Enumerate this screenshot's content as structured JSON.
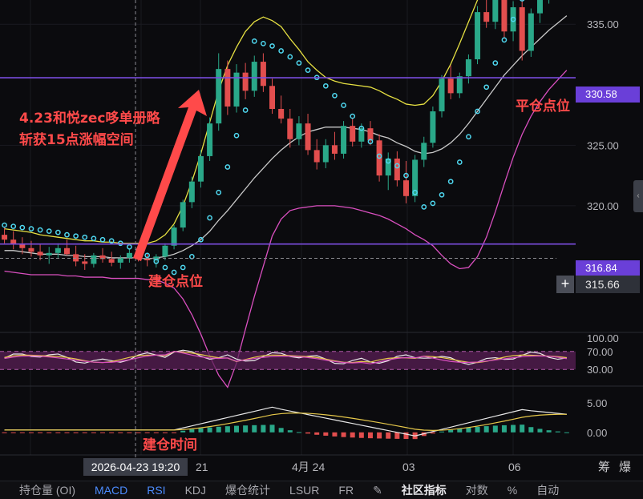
{
  "chart_data": {
    "type": "candlestick",
    "price_axis": {
      "ticks": [
        "335.00",
        "325.00",
        "320.00"
      ],
      "range": [
        310,
        337
      ]
    },
    "date_axis": {
      "labels": [
        "21",
        "4月 24",
        "03",
        "06"
      ]
    },
    "candles": [
      [
        317.6,
        318.2,
        316.9,
        317.2
      ],
      [
        317.2,
        317.9,
        316.4,
        316.8
      ],
      [
        316.8,
        317.4,
        316.0,
        316.5
      ],
      [
        316.5,
        317.1,
        315.8,
        316.2
      ],
      [
        316.2,
        316.8,
        315.5,
        315.9
      ],
      [
        315.9,
        316.6,
        315.2,
        316.1
      ],
      [
        316.1,
        316.9,
        315.7,
        316.5
      ],
      [
        316.5,
        317.2,
        315.9,
        316.0
      ],
      [
        316.0,
        316.7,
        315.0,
        315.4
      ],
      [
        315.4,
        316.0,
        314.7,
        315.2
      ],
      [
        315.2,
        316.1,
        314.9,
        315.9
      ],
      [
        315.9,
        316.5,
        315.3,
        315.6
      ],
      [
        315.6,
        316.2,
        315.0,
        315.3
      ],
      [
        315.3,
        315.9,
        314.8,
        315.7
      ],
      [
        315.7,
        316.4,
        315.3,
        316.1
      ],
      [
        316.1,
        316.6,
        315.4,
        315.6
      ],
      [
        315.6,
        316.1,
        315.0,
        315.5
      ],
      [
        315.5,
        316.0,
        314.9,
        315.8
      ],
      [
        315.8,
        316.9,
        315.5,
        316.7
      ],
      [
        316.7,
        318.4,
        316.4,
        318.2
      ],
      [
        318.2,
        320.5,
        317.9,
        320.3
      ],
      [
        320.3,
        322.4,
        319.8,
        322.0
      ],
      [
        322.0,
        324.6,
        321.5,
        324.1
      ],
      [
        324.1,
        327.3,
        323.7,
        326.8
      ],
      [
        326.8,
        332.6,
        326.2,
        331.3
      ],
      [
        331.3,
        332.0,
        327.5,
        328.2
      ],
      [
        328.2,
        331.7,
        327.7,
        331.0
      ],
      [
        331.0,
        331.8,
        328.8,
        329.5
      ],
      [
        329.5,
        332.4,
        329.0,
        331.9
      ],
      [
        331.9,
        332.6,
        329.4,
        329.9
      ],
      [
        329.9,
        330.5,
        327.6,
        328.0
      ],
      [
        328.0,
        329.1,
        326.8,
        327.2
      ],
      [
        327.2,
        328.0,
        324.8,
        325.5
      ],
      [
        325.5,
        327.4,
        325.0,
        326.8
      ],
      [
        326.8,
        327.6,
        324.2,
        324.6
      ],
      [
        324.6,
        325.5,
        323.0,
        323.6
      ],
      [
        323.6,
        325.5,
        323.1,
        325.0
      ],
      [
        325.0,
        326.1,
        323.8,
        324.3
      ],
      [
        324.3,
        327.0,
        323.9,
        326.6
      ],
      [
        326.6,
        327.2,
        324.9,
        325.3
      ],
      [
        325.3,
        326.8,
        324.8,
        326.4
      ],
      [
        326.4,
        327.0,
        325.0,
        325.4
      ],
      [
        325.4,
        325.9,
        322.0,
        322.5
      ],
      [
        322.5,
        324.4,
        321.3,
        323.9
      ],
      [
        323.9,
        324.5,
        321.6,
        322.1
      ],
      [
        322.1,
        323.7,
        320.2,
        320.8
      ],
      [
        320.8,
        324.2,
        320.3,
        323.8
      ],
      [
        323.8,
        325.7,
        323.2,
        325.2
      ],
      [
        325.2,
        328.2,
        324.8,
        327.8
      ],
      [
        327.8,
        330.8,
        327.3,
        330.5
      ],
      [
        330.5,
        331.6,
        328.8,
        329.3
      ],
      [
        329.3,
        331.0,
        328.9,
        330.7
      ],
      [
        330.7,
        332.5,
        330.1,
        332.1
      ],
      [
        332.1,
        336.5,
        331.7,
        336.0
      ],
      [
        336.0,
        338.0,
        334.7,
        335.2
      ],
      [
        335.2,
        337.8,
        334.6,
        337.4
      ],
      [
        337.4,
        338.5,
        333.8,
        334.4
      ],
      [
        334.4,
        336.9,
        333.6,
        336.4
      ],
      [
        336.4,
        337.2,
        332.0,
        332.8
      ],
      [
        332.8,
        336.3,
        332.3,
        335.9
      ],
      [
        335.9,
        338.0,
        335.1,
        337.5
      ],
      [
        337.5,
        339.0,
        336.7,
        338.5
      ],
      [
        338.5,
        339.6,
        337.2,
        337.9
      ],
      [
        337.9,
        339.8,
        337.5,
        339.4
      ]
    ],
    "bollinger": {
      "mid": [
        316.3,
        316.3,
        316.2,
        316.1,
        316.0,
        316.0,
        316.0,
        315.9,
        315.9,
        315.8,
        315.8,
        315.8,
        315.7,
        315.7,
        315.7,
        315.7,
        315.6,
        315.7,
        315.8,
        316.0,
        316.3,
        316.7,
        317.2,
        317.9,
        318.8,
        319.6,
        320.5,
        321.4,
        322.3,
        323.1,
        323.9,
        324.6,
        325.2,
        325.7,
        326.1,
        326.3,
        326.5,
        326.5,
        326.5,
        326.4,
        326.3,
        326.1,
        325.8,
        325.6,
        325.2,
        324.9,
        324.5,
        324.3,
        324.4,
        324.7,
        325.2,
        325.9,
        326.8,
        327.8,
        328.8,
        329.8,
        330.8,
        331.6,
        332.4,
        333.1,
        333.8,
        334.5,
        335.1,
        335.7
      ],
      "upper": [
        318.1,
        318.0,
        317.9,
        317.8,
        317.6,
        317.5,
        317.4,
        317.3,
        317.2,
        317.1,
        317.1,
        317.0,
        317.0,
        316.9,
        316.9,
        316.9,
        316.9,
        317.1,
        317.6,
        318.5,
        320.0,
        322.0,
        324.3,
        326.9,
        329.5,
        331.6,
        333.1,
        334.4,
        335.2,
        335.6,
        335.3,
        334.8,
        333.8,
        332.9,
        331.9,
        331.2,
        330.6,
        330.3,
        330.1,
        330.0,
        329.9,
        329.8,
        329.5,
        329.1,
        328.8,
        328.4,
        328.3,
        328.4,
        329.1,
        330.3,
        331.7,
        333.4,
        335.2,
        337.0,
        338.9,
        340.5,
        342.0,
        343.2,
        344.2,
        345.0,
        345.6,
        346.2,
        346.8,
        347.3
      ],
      "lower": [
        314.6,
        314.5,
        314.4,
        314.3,
        314.3,
        314.3,
        314.3,
        314.2,
        314.2,
        314.1,
        314.1,
        314.1,
        314.0,
        314.0,
        314.0,
        314.0,
        313.9,
        313.9,
        313.6,
        313.2,
        312.3,
        311.0,
        309.4,
        307.6,
        306.0,
        305.0,
        307.0,
        309.8,
        312.5,
        315.0,
        317.5,
        318.9,
        319.6,
        319.8,
        319.9,
        320.0,
        320.0,
        320.0,
        319.9,
        319.8,
        319.6,
        319.4,
        319.2,
        318.9,
        318.5,
        318.1,
        317.6,
        317.2,
        316.7,
        315.9,
        315.2,
        314.8,
        314.9,
        315.8,
        317.4,
        319.5,
        321.8,
        324.0,
        325.9,
        327.4,
        328.6,
        329.6,
        330.4,
        331.2
      ]
    },
    "sar": [
      318.4,
      318.3,
      318.2,
      318.1,
      318.0,
      317.9,
      317.8,
      317.6,
      317.5,
      317.4,
      317.3,
      317.2,
      317.1,
      316.9,
      316.6,
      316.3,
      315.9,
      315.4,
      314.9,
      314.5,
      314.9,
      315.8,
      317.2,
      319.0,
      321.1,
      323.2,
      325.8,
      327.9,
      333.6,
      333.4,
      333.2,
      332.8,
      332.3,
      331.8,
      331.2,
      330.6,
      329.9,
      329.1,
      328.3,
      327.4,
      326.4,
      325.3,
      324.1,
      323.7,
      323.3,
      322.5,
      321.1,
      319.9,
      320.2,
      320.9,
      322.0,
      323.6,
      325.7,
      327.8,
      329.8,
      331.8,
      333.7,
      335.4,
      337.1,
      338.7,
      340.1,
      341.4,
      342.6,
      343.7
    ],
    "levels": {
      "entry_price": "316.84",
      "exit_price": "330.58",
      "current_price": "315.66"
    },
    "rsi": {
      "ticks": [
        "100.00",
        "70.00",
        "30.00"
      ],
      "range": [
        0,
        100
      ]
    },
    "macd": {
      "ticks": [
        "5.00",
        "0.00"
      ],
      "range": [
        -3,
        7
      ]
    },
    "crosshair_date": "2026-04-23 19:20"
  },
  "annotations": {
    "headline_line1": "4.23和悦zec哆单册略",
    "headline_line2": "斩获15点涨幅空间",
    "exit_label": "平仓点位",
    "entry_label": "建仓点位",
    "entry_time_label": "建仓时间"
  },
  "side_buttons": {
    "left": "筹",
    "right": "爆"
  },
  "tabs": [
    "持仓量 (OI)",
    "MACD",
    "RSI",
    "KDJ",
    "爆仓统计",
    "LSUR",
    "FR",
    "✎",
    "社区指标",
    "对数",
    "%",
    "自动"
  ],
  "colors": {
    "up": "#2aa889",
    "down": "#e24e4e",
    "mid": "#c9c9c9",
    "upper": "#e6e042",
    "lower": "#d94fbf",
    "sar": "#4fd8f0",
    "level": "#7b4ddf",
    "annotation": "#ff4a4a",
    "rsi_band": "#5a1f55"
  }
}
